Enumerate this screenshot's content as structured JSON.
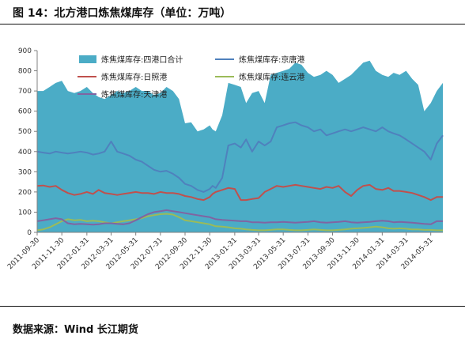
{
  "header": {
    "title": "图 14：北方港口炼焦煤库存（单位：万吨）"
  },
  "footer": {
    "source": "数据来源：Wind 长江期货"
  },
  "chart_data": {
    "type": "area",
    "title": "图 14：北方港口炼焦煤库存（单位：万吨）",
    "ylabel": "",
    "xlabel": "",
    "ylim": [
      0,
      900
    ],
    "yticks": [
      0,
      100,
      200,
      300,
      400,
      500,
      600,
      700,
      800,
      900
    ],
    "xlim": [
      "2011-09-30",
      "2014-06-30"
    ],
    "xticks": [
      "2011-09-30",
      "2011-11-30",
      "2012-01-31",
      "2012-03-31",
      "2012-05-31",
      "2012-07-31",
      "2012-09-30",
      "2012-11-30",
      "2013-01-31",
      "2013-03-31",
      "2013-05-31",
      "2013-07-31",
      "2013-09-30",
      "2013-11-30",
      "2014-01-31",
      "2014-03-31",
      "2014-05-31"
    ],
    "grid": false,
    "legend": "top",
    "series": [
      {
        "name": "炼焦煤库存:四港口合计",
        "kind": "area",
        "color": "#4bacc6",
        "x": [
          "2011-09-30",
          "2011-10-15",
          "2011-10-31",
          "2011-11-15",
          "2011-11-30",
          "2011-12-15",
          "2011-12-31",
          "2012-01-15",
          "2012-01-31",
          "2012-02-15",
          "2012-02-29",
          "2012-03-15",
          "2012-03-31",
          "2012-04-15",
          "2012-04-30",
          "2012-05-15",
          "2012-05-31",
          "2012-06-15",
          "2012-06-30",
          "2012-07-15",
          "2012-07-31",
          "2012-08-15",
          "2012-08-31",
          "2012-09-15",
          "2012-09-30",
          "2012-10-15",
          "2012-10-31",
          "2012-11-15",
          "2012-11-30",
          "2012-12-07",
          "2012-12-15",
          "2012-12-31",
          "2013-01-15",
          "2013-01-31",
          "2013-02-15",
          "2013-02-28",
          "2013-03-15",
          "2013-03-31",
          "2013-04-15",
          "2013-04-30",
          "2013-05-15",
          "2013-05-31",
          "2013-06-15",
          "2013-06-30",
          "2013-07-15",
          "2013-07-31",
          "2013-08-15",
          "2013-08-31",
          "2013-09-15",
          "2013-09-30",
          "2013-10-15",
          "2013-10-31",
          "2013-11-15",
          "2013-11-30",
          "2013-12-15",
          "2013-12-31",
          "2014-01-15",
          "2014-01-31",
          "2014-02-15",
          "2014-02-28",
          "2014-03-15",
          "2014-03-31",
          "2014-04-15",
          "2014-04-30",
          "2014-05-15",
          "2014-05-31",
          "2014-06-15",
          "2014-06-30"
        ],
        "values": [
          700,
          700,
          720,
          740,
          750,
          700,
          690,
          700,
          720,
          690,
          670,
          660,
          680,
          700,
          690,
          700,
          720,
          700,
          700,
          680,
          690,
          720,
          700,
          660,
          540,
          545,
          500,
          510,
          530,
          510,
          500,
          580,
          740,
          730,
          720,
          640,
          690,
          700,
          640,
          780,
          790,
          800,
          810,
          840,
          830,
          790,
          770,
          780,
          800,
          780,
          740,
          760,
          780,
          810,
          840,
          850,
          800,
          780,
          770,
          790,
          780,
          800,
          760,
          730,
          600,
          640,
          700,
          740
        ]
      },
      {
        "name": "炼焦煤库存:京唐港",
        "kind": "line",
        "color": "#4f81bd",
        "x": [
          "2011-09-30",
          "2011-10-15",
          "2011-10-31",
          "2011-11-15",
          "2011-11-30",
          "2011-12-15",
          "2011-12-31",
          "2012-01-15",
          "2012-01-31",
          "2012-02-15",
          "2012-02-29",
          "2012-03-15",
          "2012-03-31",
          "2012-04-15",
          "2012-04-30",
          "2012-05-15",
          "2012-05-31",
          "2012-06-15",
          "2012-06-30",
          "2012-07-15",
          "2012-07-31",
          "2012-08-15",
          "2012-08-31",
          "2012-09-15",
          "2012-09-30",
          "2012-10-15",
          "2012-10-31",
          "2012-11-15",
          "2012-11-30",
          "2012-12-07",
          "2012-12-15",
          "2012-12-31",
          "2013-01-15",
          "2013-01-31",
          "2013-02-15",
          "2013-02-28",
          "2013-03-15",
          "2013-03-31",
          "2013-04-15",
          "2013-04-30",
          "2013-05-15",
          "2013-05-31",
          "2013-06-15",
          "2013-06-30",
          "2013-07-15",
          "2013-07-31",
          "2013-08-15",
          "2013-08-31",
          "2013-09-15",
          "2013-09-30",
          "2013-10-15",
          "2013-10-31",
          "2013-11-15",
          "2013-11-30",
          "2013-12-15",
          "2013-12-31",
          "2014-01-15",
          "2014-01-31",
          "2014-02-15",
          "2014-02-28",
          "2014-03-15",
          "2014-03-31",
          "2014-04-15",
          "2014-04-30",
          "2014-05-15",
          "2014-05-31",
          "2014-06-15",
          "2014-06-30"
        ],
        "values": [
          400,
          395,
          390,
          400,
          395,
          390,
          395,
          400,
          395,
          385,
          390,
          400,
          450,
          400,
          390,
          380,
          360,
          350,
          330,
          310,
          300,
          305,
          290,
          270,
          240,
          230,
          210,
          200,
          215,
          230,
          220,
          270,
          430,
          440,
          420,
          460,
          400,
          450,
          430,
          450,
          520,
          530,
          540,
          545,
          530,
          520,
          500,
          510,
          480,
          490,
          500,
          510,
          500,
          510,
          520,
          510,
          500,
          520,
          500,
          490,
          480,
          460,
          440,
          420,
          400,
          360,
          440,
          480
        ]
      },
      {
        "name": "炼焦煤库存:日照港",
        "kind": "line",
        "color": "#c0504d",
        "x": [
          "2011-09-30",
          "2011-10-15",
          "2011-10-31",
          "2011-11-15",
          "2011-11-30",
          "2011-12-15",
          "2011-12-31",
          "2012-01-15",
          "2012-01-31",
          "2012-02-15",
          "2012-02-29",
          "2012-03-15",
          "2012-03-31",
          "2012-04-15",
          "2012-04-30",
          "2012-05-15",
          "2012-05-31",
          "2012-06-15",
          "2012-06-30",
          "2012-07-15",
          "2012-07-31",
          "2012-08-15",
          "2012-08-31",
          "2012-09-15",
          "2012-09-30",
          "2012-10-15",
          "2012-10-31",
          "2012-11-15",
          "2012-11-30",
          "2012-12-07",
          "2012-12-15",
          "2012-12-31",
          "2013-01-15",
          "2013-01-31",
          "2013-02-15",
          "2013-02-28",
          "2013-03-15",
          "2013-03-31",
          "2013-04-15",
          "2013-04-30",
          "2013-05-15",
          "2013-05-31",
          "2013-06-15",
          "2013-06-30",
          "2013-07-15",
          "2013-07-31",
          "2013-08-15",
          "2013-08-31",
          "2013-09-15",
          "2013-09-30",
          "2013-10-15",
          "2013-10-31",
          "2013-11-15",
          "2013-11-30",
          "2013-12-15",
          "2013-12-31",
          "2014-01-15",
          "2014-01-31",
          "2014-02-15",
          "2014-02-28",
          "2014-03-15",
          "2014-03-31",
          "2014-04-15",
          "2014-04-30",
          "2014-05-15",
          "2014-05-31",
          "2014-06-15",
          "2014-06-30"
        ],
        "values": [
          230,
          232,
          225,
          230,
          210,
          195,
          185,
          190,
          200,
          190,
          210,
          195,
          190,
          185,
          190,
          195,
          200,
          195,
          195,
          190,
          200,
          195,
          195,
          190,
          180,
          175,
          165,
          160,
          175,
          190,
          200,
          210,
          220,
          215,
          160,
          160,
          165,
          170,
          200,
          215,
          230,
          225,
          230,
          235,
          230,
          225,
          220,
          215,
          225,
          220,
          230,
          200,
          180,
          210,
          230,
          235,
          215,
          210,
          220,
          205,
          205,
          200,
          195,
          185,
          175,
          160,
          175,
          175
        ]
      },
      {
        "name": "炼焦煤库存:连云港",
        "kind": "line",
        "color": "#9bbb59",
        "x": [
          "2011-09-30",
          "2011-10-15",
          "2011-10-31",
          "2011-11-15",
          "2011-11-30",
          "2011-12-15",
          "2011-12-31",
          "2012-01-15",
          "2012-01-31",
          "2012-02-15",
          "2012-02-29",
          "2012-03-15",
          "2012-03-31",
          "2012-04-15",
          "2012-04-30",
          "2012-05-15",
          "2012-05-31",
          "2012-06-15",
          "2012-06-30",
          "2012-07-15",
          "2012-07-31",
          "2012-08-15",
          "2012-08-31",
          "2012-09-15",
          "2012-09-30",
          "2012-10-15",
          "2012-10-31",
          "2012-11-15",
          "2012-11-30",
          "2012-12-07",
          "2012-12-15",
          "2012-12-31",
          "2013-01-15",
          "2013-01-31",
          "2013-02-15",
          "2013-02-28",
          "2013-03-15",
          "2013-03-31",
          "2013-04-15",
          "2013-04-30",
          "2013-05-15",
          "2013-05-31",
          "2013-06-15",
          "2013-06-30",
          "2013-07-15",
          "2013-07-31",
          "2013-08-15",
          "2013-08-31",
          "2013-09-15",
          "2013-09-30",
          "2013-10-15",
          "2013-10-31",
          "2013-11-15",
          "2013-11-30",
          "2013-12-15",
          "2013-12-31",
          "2014-01-15",
          "2014-01-31",
          "2014-02-15",
          "2014-02-28",
          "2014-03-15",
          "2014-03-31",
          "2014-04-15",
          "2014-04-30",
          "2014-05-15",
          "2014-05-31",
          "2014-06-15",
          "2014-06-30"
        ],
        "values": [
          10,
          15,
          25,
          40,
          55,
          65,
          60,
          62,
          55,
          58,
          55,
          50,
          45,
          50,
          55,
          60,
          65,
          70,
          80,
          85,
          90,
          92,
          88,
          75,
          60,
          55,
          50,
          45,
          40,
          35,
          30,
          28,
          25,
          20,
          18,
          15,
          12,
          10,
          10,
          12,
          15,
          15,
          12,
          10,
          10,
          12,
          15,
          12,
          10,
          10,
          12,
          15,
          18,
          20,
          22,
          25,
          28,
          25,
          20,
          18,
          20,
          18,
          15,
          15,
          12,
          12,
          10,
          10
        ]
      },
      {
        "name": "炼焦煤库存:天津港",
        "kind": "line",
        "color": "#8064a2",
        "x": [
          "2011-09-30",
          "2011-10-15",
          "2011-10-31",
          "2011-11-15",
          "2011-11-30",
          "2011-12-15",
          "2011-12-31",
          "2012-01-15",
          "2012-01-31",
          "2012-02-15",
          "2012-02-29",
          "2012-03-15",
          "2012-03-31",
          "2012-04-15",
          "2012-04-30",
          "2012-05-15",
          "2012-05-31",
          "2012-06-15",
          "2012-06-30",
          "2012-07-15",
          "2012-07-31",
          "2012-08-15",
          "2012-08-31",
          "2012-09-15",
          "2012-09-30",
          "2012-10-15",
          "2012-10-31",
          "2012-11-15",
          "2012-11-30",
          "2012-12-07",
          "2012-12-15",
          "2012-12-31",
          "2013-01-15",
          "2013-01-31",
          "2013-02-15",
          "2013-02-28",
          "2013-03-15",
          "2013-03-31",
          "2013-04-15",
          "2013-04-30",
          "2013-05-15",
          "2013-05-31",
          "2013-06-15",
          "2013-06-30",
          "2013-07-15",
          "2013-07-31",
          "2013-08-15",
          "2013-08-31",
          "2013-09-15",
          "2013-09-30",
          "2013-10-15",
          "2013-10-31",
          "2013-11-15",
          "2013-11-30",
          "2013-12-15",
          "2013-12-31",
          "2014-01-15",
          "2014-01-31",
          "2014-02-15",
          "2014-02-28",
          "2014-03-15",
          "2014-03-31",
          "2014-04-15",
          "2014-04-30",
          "2014-05-15",
          "2014-05-31",
          "2014-06-15",
          "2014-06-30"
        ],
        "values": [
          55,
          60,
          65,
          70,
          65,
          45,
          40,
          42,
          40,
          38,
          40,
          45,
          45,
          42,
          40,
          45,
          60,
          75,
          90,
          100,
          105,
          110,
          105,
          100,
          95,
          90,
          85,
          80,
          75,
          70,
          65,
          62,
          60,
          58,
          55,
          55,
          50,
          50,
          48,
          50,
          50,
          52,
          50,
          48,
          50,
          52,
          55,
          50,
          48,
          50,
          52,
          55,
          50,
          48,
          50,
          52,
          55,
          58,
          55,
          50,
          52,
          50,
          48,
          45,
          42,
          40,
          55,
          55
        ]
      }
    ]
  }
}
